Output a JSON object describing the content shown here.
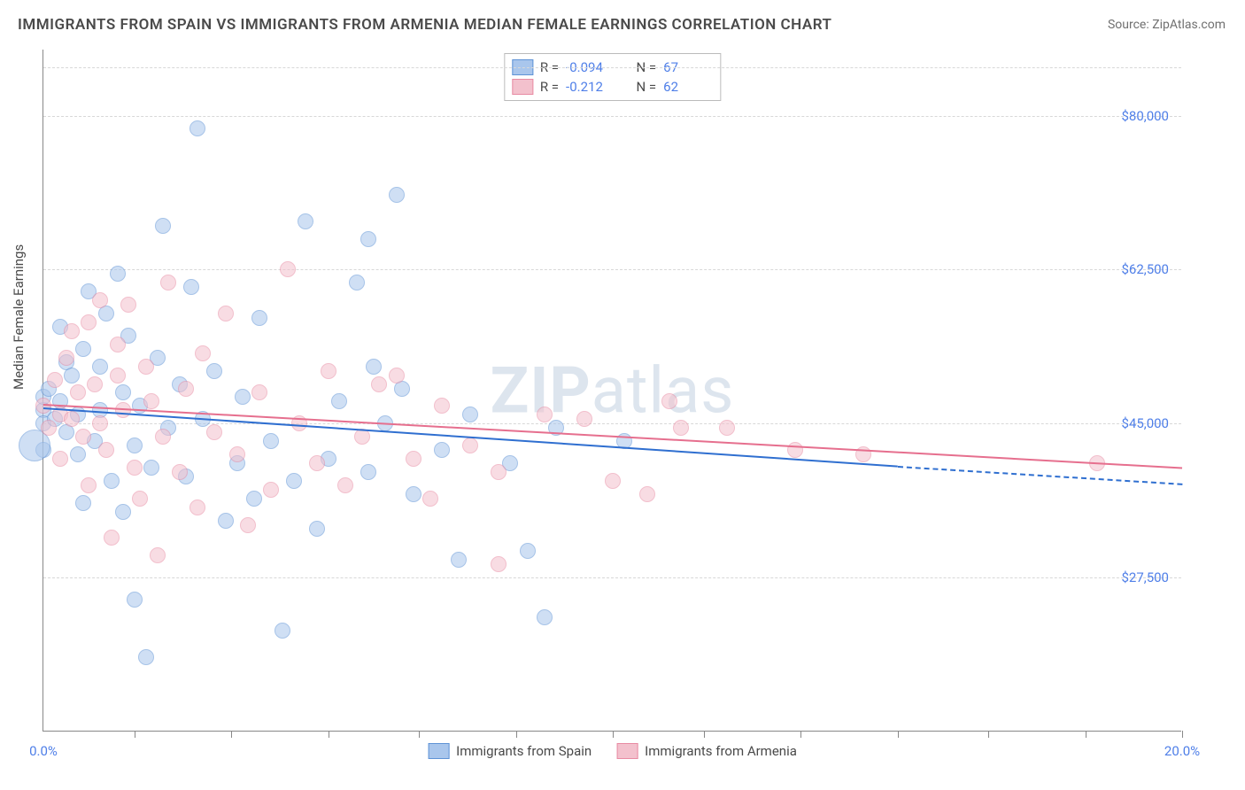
{
  "title": "IMMIGRANTS FROM SPAIN VS IMMIGRANTS FROM ARMENIA MEDIAN FEMALE EARNINGS CORRELATION CHART",
  "source_label": "Source: ",
  "source_value": "ZipAtlas.com",
  "ylabel": "Median Female Earnings",
  "watermark_bold": "ZIP",
  "watermark_light": "atlas",
  "chart": {
    "type": "scatter",
    "xlim": [
      0,
      20
    ],
    "ylim": [
      10000,
      87500
    ],
    "background_color": "#ffffff",
    "grid_color": "#d8d8d8",
    "axis_color": "#888888",
    "y_ticks": [
      {
        "v": 27500,
        "label": "$27,500"
      },
      {
        "v": 45000,
        "label": "$45,000"
      },
      {
        "v": 62500,
        "label": "$62,500"
      },
      {
        "v": 80000,
        "label": "$80,000"
      }
    ],
    "x_ticks_minor": [
      1.6,
      3.3,
      5.0,
      6.6,
      8.3,
      10.0,
      11.6,
      13.3,
      15.0,
      16.6,
      18.3,
      20.0
    ],
    "x_tick_labels": [
      {
        "v": 0,
        "label": "0.0%"
      },
      {
        "v": 20,
        "label": "20.0%"
      }
    ],
    "top_gridline_y": 85500,
    "series": [
      {
        "name": "Immigrants from Spain",
        "fill_color": "#a9c6ec",
        "stroke_color": "#5f93d6",
        "fill_opacity": 0.55,
        "R": "-0.094",
        "N": "67",
        "trend": {
          "x1": 0,
          "y1": 46800,
          "x2": 15.0,
          "y2": 40200,
          "color": "#2f6fd0",
          "dash_to_x": 20.0,
          "dash_y": 38200
        },
        "marker_r": 9,
        "points": [
          [
            0.0,
            46500
          ],
          [
            0.0,
            42000
          ],
          [
            0.0,
            48000
          ],
          [
            0.0,
            45000
          ],
          [
            0.1,
            49000
          ],
          [
            0.2,
            45500
          ],
          [
            0.3,
            47500
          ],
          [
            0.3,
            56000
          ],
          [
            0.4,
            44000
          ],
          [
            0.4,
            52000
          ],
          [
            0.5,
            50500
          ],
          [
            0.6,
            46000
          ],
          [
            0.6,
            41500
          ],
          [
            0.7,
            53500
          ],
          [
            0.7,
            36000
          ],
          [
            0.8,
            60000
          ],
          [
            0.9,
            43000
          ],
          [
            1.0,
            46500
          ],
          [
            1.0,
            51500
          ],
          [
            1.1,
            57500
          ],
          [
            1.2,
            38500
          ],
          [
            1.3,
            62000
          ],
          [
            1.4,
            35000
          ],
          [
            1.4,
            48500
          ],
          [
            1.5,
            55000
          ],
          [
            1.6,
            25000
          ],
          [
            1.6,
            42500
          ],
          [
            1.7,
            47000
          ],
          [
            1.8,
            18500
          ],
          [
            1.9,
            40000
          ],
          [
            2.0,
            52500
          ],
          [
            2.1,
            67500
          ],
          [
            2.2,
            44500
          ],
          [
            2.4,
            49500
          ],
          [
            2.5,
            39000
          ],
          [
            2.6,
            60500
          ],
          [
            2.7,
            78500
          ],
          [
            2.8,
            45500
          ],
          [
            3.0,
            51000
          ],
          [
            3.2,
            34000
          ],
          [
            3.4,
            40500
          ],
          [
            3.5,
            48000
          ],
          [
            3.7,
            36500
          ],
          [
            3.8,
            57000
          ],
          [
            4.0,
            43000
          ],
          [
            4.2,
            21500
          ],
          [
            4.4,
            38500
          ],
          [
            4.6,
            68000
          ],
          [
            4.8,
            33000
          ],
          [
            5.0,
            41000
          ],
          [
            5.2,
            47500
          ],
          [
            5.5,
            61000
          ],
          [
            5.7,
            39500
          ],
          [
            5.7,
            66000
          ],
          [
            5.8,
            51500
          ],
          [
            6.0,
            45000
          ],
          [
            6.2,
            71000
          ],
          [
            6.3,
            49000
          ],
          [
            6.5,
            37000
          ],
          [
            7.0,
            42000
          ],
          [
            7.3,
            29500
          ],
          [
            7.5,
            46000
          ],
          [
            8.2,
            40500
          ],
          [
            8.5,
            30500
          ],
          [
            8.8,
            23000
          ],
          [
            9.0,
            44500
          ],
          [
            10.2,
            43000
          ]
        ],
        "overflow_point": {
          "x": -0.15,
          "y": 42500,
          "r": 18
        }
      },
      {
        "name": "Immigrants from Armenia",
        "fill_color": "#f3c1cd",
        "stroke_color": "#e88ba3",
        "fill_opacity": 0.55,
        "R": "-0.212",
        "N": "62",
        "trend": {
          "x1": 0,
          "y1": 47200,
          "x2": 20.0,
          "y2": 40000,
          "color": "#e66f8e"
        },
        "marker_r": 9,
        "points": [
          [
            0.0,
            47000
          ],
          [
            0.1,
            44500
          ],
          [
            0.2,
            50000
          ],
          [
            0.3,
            46000
          ],
          [
            0.3,
            41000
          ],
          [
            0.4,
            52500
          ],
          [
            0.5,
            45500
          ],
          [
            0.5,
            55500
          ],
          [
            0.6,
            48500
          ],
          [
            0.7,
            43500
          ],
          [
            0.8,
            56500
          ],
          [
            0.8,
            38000
          ],
          [
            0.9,
            49500
          ],
          [
            1.0,
            45000
          ],
          [
            1.0,
            59000
          ],
          [
            1.1,
            42000
          ],
          [
            1.2,
            32000
          ],
          [
            1.3,
            50500
          ],
          [
            1.3,
            54000
          ],
          [
            1.4,
            46500
          ],
          [
            1.5,
            58500
          ],
          [
            1.6,
            40000
          ],
          [
            1.7,
            36500
          ],
          [
            1.8,
            51500
          ],
          [
            1.9,
            47500
          ],
          [
            2.0,
            30000
          ],
          [
            2.1,
            43500
          ],
          [
            2.2,
            61000
          ],
          [
            2.4,
            39500
          ],
          [
            2.5,
            49000
          ],
          [
            2.7,
            35500
          ],
          [
            2.8,
            53000
          ],
          [
            3.0,
            44000
          ],
          [
            3.2,
            57500
          ],
          [
            3.4,
            41500
          ],
          [
            3.6,
            33500
          ],
          [
            3.8,
            48500
          ],
          [
            4.0,
            37500
          ],
          [
            4.3,
            62500
          ],
          [
            4.5,
            45000
          ],
          [
            4.8,
            40500
          ],
          [
            5.0,
            51000
          ],
          [
            5.3,
            38000
          ],
          [
            5.6,
            43500
          ],
          [
            5.9,
            49500
          ],
          [
            6.2,
            50500
          ],
          [
            6.5,
            41000
          ],
          [
            6.8,
            36500
          ],
          [
            7.0,
            47000
          ],
          [
            7.5,
            42500
          ],
          [
            8.0,
            39500
          ],
          [
            8.0,
            29000
          ],
          [
            8.8,
            46000
          ],
          [
            9.5,
            45500
          ],
          [
            10.0,
            38500
          ],
          [
            10.6,
            37000
          ],
          [
            11.0,
            47500
          ],
          [
            11.2,
            44500
          ],
          [
            12.0,
            44500
          ],
          [
            13.2,
            42000
          ],
          [
            14.4,
            41500
          ],
          [
            18.5,
            40500
          ]
        ]
      }
    ],
    "bottom_legend": [
      {
        "swatch_fill": "#a9c6ec",
        "swatch_stroke": "#5f93d6",
        "label": "Immigrants from Spain"
      },
      {
        "swatch_fill": "#f3c1cd",
        "swatch_stroke": "#e88ba3",
        "label": "Immigrants from Armenia"
      }
    ]
  }
}
